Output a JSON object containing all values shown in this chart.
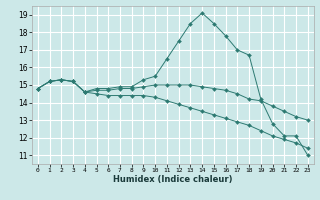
{
  "title": "",
  "xlabel": "Humidex (Indice chaleur)",
  "ylabel": "",
  "background_color": "#cce8e8",
  "grid_color": "#ffffff",
  "line_color": "#2d7a72",
  "xlim": [
    -0.5,
    23.5
  ],
  "ylim": [
    10.5,
    19.5
  ],
  "xticks": [
    0,
    1,
    2,
    3,
    4,
    5,
    6,
    7,
    8,
    9,
    10,
    11,
    12,
    13,
    14,
    15,
    16,
    17,
    18,
    19,
    20,
    21,
    22,
    23
  ],
  "yticks": [
    11,
    12,
    13,
    14,
    15,
    16,
    17,
    18,
    19
  ],
  "series": [
    [
      14.8,
      15.2,
      15.3,
      15.2,
      14.6,
      14.8,
      14.8,
      14.9,
      14.9,
      15.3,
      15.5,
      16.5,
      17.5,
      18.5,
      19.1,
      18.5,
      17.8,
      17.0,
      16.7,
      14.2,
      12.8,
      12.1,
      12.1,
      11.0
    ],
    [
      14.8,
      15.2,
      15.3,
      15.2,
      14.6,
      14.7,
      14.7,
      14.8,
      14.8,
      14.9,
      15.0,
      15.0,
      15.0,
      15.0,
      14.9,
      14.8,
      14.7,
      14.5,
      14.2,
      14.1,
      13.8,
      13.5,
      13.2,
      13.0
    ],
    [
      14.8,
      15.2,
      15.3,
      15.2,
      14.6,
      14.5,
      14.4,
      14.4,
      14.4,
      14.4,
      14.3,
      14.1,
      13.9,
      13.7,
      13.5,
      13.3,
      13.1,
      12.9,
      12.7,
      12.4,
      12.1,
      11.9,
      11.7,
      11.4
    ]
  ]
}
